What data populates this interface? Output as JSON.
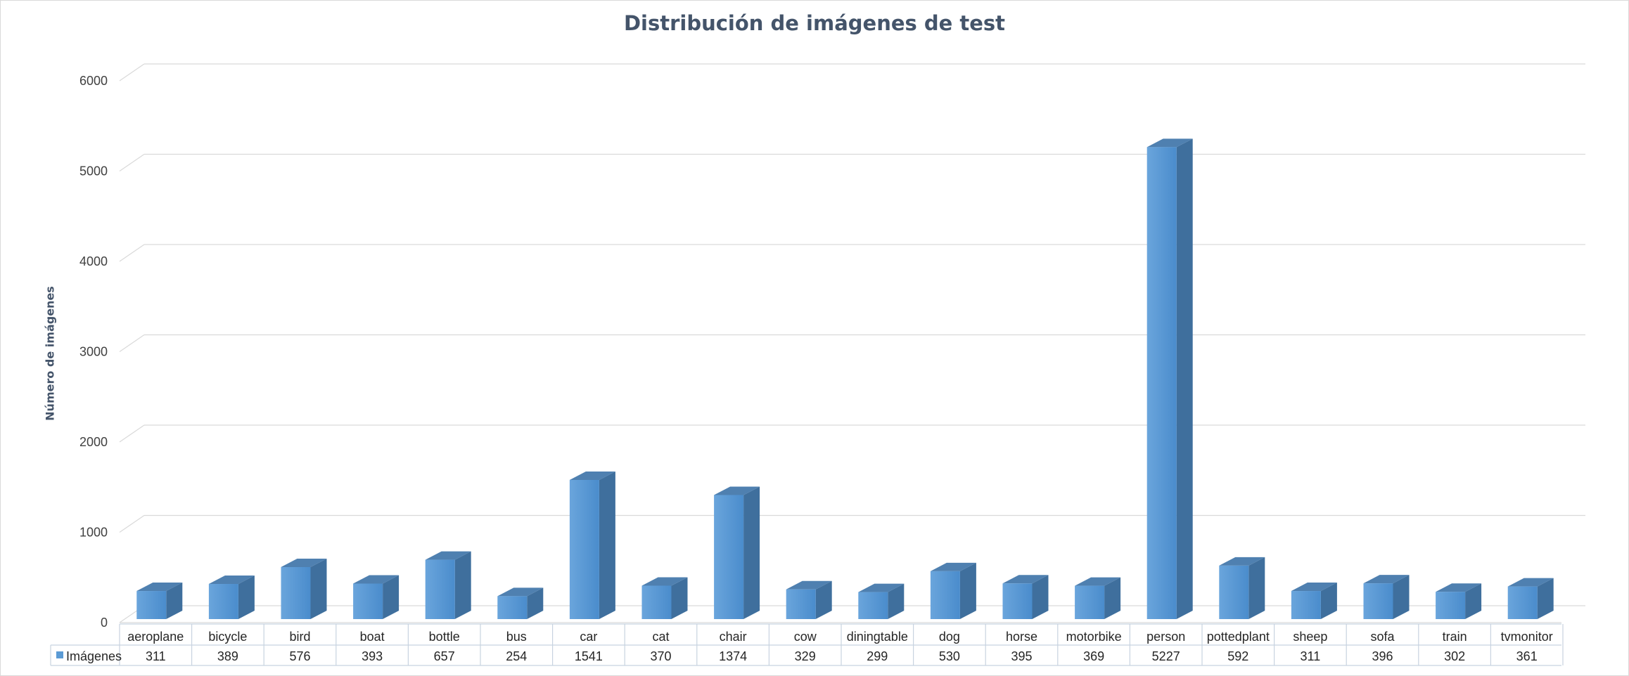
{
  "chart_data": {
    "type": "bar",
    "title": "Distribución de imágenes de test",
    "ylabel": "Número de imágenes",
    "xlabel": "",
    "ylim": [
      0,
      6000
    ],
    "yticks": [
      0,
      1000,
      2000,
      3000,
      4000,
      5000,
      6000
    ],
    "grid": true,
    "legend": "data-table",
    "categories": [
      "aeroplane",
      "bicycle",
      "bird",
      "boat",
      "bottle",
      "bus",
      "car",
      "cat",
      "chair",
      "cow",
      "diningtable",
      "dog",
      "horse",
      "motorbike",
      "person",
      "pottedplant",
      "sheep",
      "sofa",
      "train",
      "tvmonitor"
    ],
    "series": [
      {
        "name": "Imágenes",
        "values": [
          311,
          389,
          576,
          393,
          657,
          254,
          1541,
          370,
          1374,
          329,
          299,
          530,
          395,
          369,
          5227,
          592,
          311,
          396,
          302,
          361
        ]
      }
    ],
    "colors": {
      "front": "#5b9bd5",
      "side": "#3f6f9d",
      "top": "#4f80b0",
      "grid": "#d9d9d9",
      "text": "#44546a"
    }
  }
}
